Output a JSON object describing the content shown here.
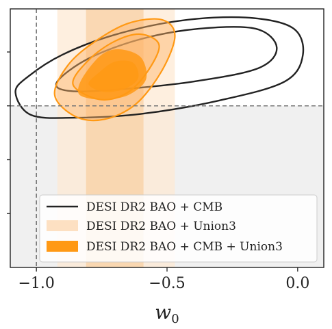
{
  "chart_data": {
    "type": "contour",
    "xlabel": "w",
    "xlabel_sub": "0",
    "xlim": [
      -1.1,
      0.1
    ],
    "ylim": [
      -4.0,
      0.8
    ],
    "x_ticks": [
      {
        "value": -1.0,
        "label": "−1.0"
      },
      {
        "value": -0.5,
        "label": "−0.5"
      },
      {
        "value": 0.0,
        "label": "0.0"
      }
    ],
    "y_ticks": [
      -3.0,
      -2.0,
      -1.0,
      0.0
    ],
    "y_tick_labels_shown": false,
    "reference_lines": [
      {
        "orientation": "vertical",
        "x": -1.0,
        "style": "dashed"
      },
      {
        "orientation": "horizontal",
        "y": -1.0,
        "style": "dashed"
      }
    ],
    "shaded_region": {
      "y_below": -1.0,
      "color": "#f0f0f0"
    },
    "bands": [
      {
        "name": "DESI DR2 BAO + Union3 (w0, 95%)",
        "x_range": [
          -0.92,
          -0.47
        ],
        "color": "#fde8d2"
      },
      {
        "name": "DESI DR2 BAO + Union3 (w0, 68%)",
        "x_range": [
          -0.81,
          -0.59
        ],
        "color": "#f8cfa0"
      }
    ],
    "series": [
      {
        "name": "DESI DR2 BAO + CMB",
        "color": "#222222",
        "fill": "none",
        "contours": [
          {
            "level": "95%",
            "points": [
              [
                -1.08,
                -0.75
              ],
              [
                -1.03,
                -0.45
              ],
              [
                -0.9,
                -0.05
              ],
              [
                -0.7,
                0.32
              ],
              [
                -0.45,
                0.58
              ],
              [
                -0.2,
                0.64
              ],
              [
                -0.02,
                0.45
              ],
              [
                0.02,
                -0.05
              ],
              [
                -0.05,
                -0.55
              ],
              [
                -0.3,
                -0.9
              ],
              [
                -0.6,
                -1.15
              ],
              [
                -0.85,
                -1.22
              ],
              [
                -1.02,
                -1.17
              ]
            ]
          },
          {
            "level": "68%",
            "points": [
              [
                -0.92,
                -0.55
              ],
              [
                -0.8,
                -0.12
              ],
              [
                -0.6,
                0.24
              ],
              [
                -0.38,
                0.43
              ],
              [
                -0.16,
                0.43
              ],
              [
                -0.08,
                0.08
              ],
              [
                -0.15,
                -0.3
              ],
              [
                -0.4,
                -0.55
              ],
              [
                -0.7,
                -0.7
              ],
              [
                -0.88,
                -0.72
              ]
            ]
          }
        ]
      },
      {
        "name": "DESI DR2 BAO + Union3",
        "color": "#ffb366",
        "fill_opacity": 0.45,
        "stroke": "#ff9914",
        "contours": [
          {
            "level": "95%",
            "points": [
              [
                -0.93,
                -0.8
              ],
              [
                -0.88,
                -0.25
              ],
              [
                -0.78,
                0.18
              ],
              [
                -0.65,
                0.53
              ],
              [
                -0.52,
                0.6
              ],
              [
                -0.47,
                0.3
              ],
              [
                -0.52,
                -0.35
              ],
              [
                -0.62,
                -0.97
              ],
              [
                -0.74,
                -1.25
              ],
              [
                -0.85,
                -1.2
              ]
            ]
          },
          {
            "level": "68%",
            "points": [
              [
                -0.86,
                -0.6
              ],
              [
                -0.8,
                -0.15
              ],
              [
                -0.7,
                0.2
              ],
              [
                -0.6,
                0.33
              ],
              [
                -0.53,
                0.12
              ],
              [
                -0.58,
                -0.4
              ],
              [
                -0.66,
                -0.78
              ],
              [
                -0.76,
                -0.88
              ]
            ]
          }
        ]
      },
      {
        "name": "DESI DR2 BAO + CMB + Union3",
        "color": "#ff9914",
        "fill_opacity": 0.85,
        "contours": [
          {
            "level": "95%",
            "points": [
              [
                -0.84,
                -0.75
              ],
              [
                -0.82,
                -0.45
              ],
              [
                -0.75,
                -0.05
              ],
              [
                -0.68,
                0.05
              ],
              [
                -0.6,
                -0.1
              ],
              [
                -0.58,
                -0.5
              ],
              [
                -0.64,
                -0.78
              ],
              [
                -0.72,
                -0.88
              ],
              [
                -0.8,
                -0.86
              ]
            ]
          },
          {
            "level": "68%",
            "points": [
              [
                -0.8,
                -0.6
              ],
              [
                -0.76,
                -0.38
              ],
              [
                -0.7,
                -0.18
              ],
              [
                -0.63,
                -0.2
              ],
              [
                -0.61,
                -0.48
              ],
              [
                -0.66,
                -0.68
              ],
              [
                -0.74,
                -0.74
              ]
            ]
          }
        ]
      }
    ],
    "legend": {
      "position": "lower-right",
      "entries": [
        {
          "label": "DESI DR2 BAO + CMB",
          "kind": "line",
          "color": "#222222"
        },
        {
          "label": "DESI DR2 BAO + Union3",
          "kind": "patch",
          "color": "#fde0c2"
        },
        {
          "label": "DESI DR2 BAO + CMB + Union3",
          "kind": "patch",
          "color": "#ff9914"
        }
      ]
    }
  }
}
